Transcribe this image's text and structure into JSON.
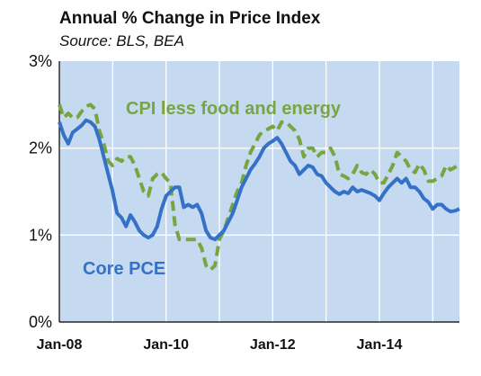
{
  "colors": {
    "plot_bg": "#c5d9f1",
    "core_pce": "#3572c7",
    "cpi": "#77a641",
    "grid": "#ffffff"
  },
  "chart_data": {
    "type": "line",
    "title": "Annual % Change in Price Index",
    "subtitle": "Source: BLS, BEA",
    "xlabel": "",
    "ylabel": "",
    "xlim": [
      "2008-01",
      "2015-07"
    ],
    "ylim": [
      0,
      3
    ],
    "y_ticks": [
      "0%",
      "1%",
      "2%",
      "3%"
    ],
    "x_ticks": [
      "Jan-08",
      "Jan-10",
      "Jan-12",
      "Jan-14"
    ],
    "grid": true,
    "series": [
      {
        "name": "Core PCE",
        "style": "solid",
        "points": [
          [
            "2008-01",
            2.3
          ],
          [
            "2008-02",
            2.15
          ],
          [
            "2008-03",
            2.05
          ],
          [
            "2008-04",
            2.18
          ],
          [
            "2008-05",
            2.22
          ],
          [
            "2008-06",
            2.26
          ],
          [
            "2008-07",
            2.32
          ],
          [
            "2008-08",
            2.3
          ],
          [
            "2008-09",
            2.25
          ],
          [
            "2008-10",
            2.1
          ],
          [
            "2008-11",
            1.9
          ],
          [
            "2008-12",
            1.7
          ],
          [
            "2009-01",
            1.5
          ],
          [
            "2009-02",
            1.25
          ],
          [
            "2009-03",
            1.2
          ],
          [
            "2009-04",
            1.1
          ],
          [
            "2009-05",
            1.23
          ],
          [
            "2009-06",
            1.15
          ],
          [
            "2009-07",
            1.05
          ],
          [
            "2009-08",
            1.0
          ],
          [
            "2009-09",
            0.97
          ],
          [
            "2009-10",
            1.0
          ],
          [
            "2009-11",
            1.1
          ],
          [
            "2009-12",
            1.3
          ],
          [
            "2010-01",
            1.45
          ],
          [
            "2010-02",
            1.5
          ],
          [
            "2010-03",
            1.55
          ],
          [
            "2010-04",
            1.55
          ],
          [
            "2010-05",
            1.32
          ],
          [
            "2010-06",
            1.35
          ],
          [
            "2010-07",
            1.32
          ],
          [
            "2010-08",
            1.35
          ],
          [
            "2010-09",
            1.25
          ],
          [
            "2010-10",
            1.05
          ],
          [
            "2010-11",
            0.97
          ],
          [
            "2010-12",
            0.95
          ],
          [
            "2011-01",
            1.0
          ],
          [
            "2011-02",
            1.05
          ],
          [
            "2011-03",
            1.15
          ],
          [
            "2011-04",
            1.25
          ],
          [
            "2011-05",
            1.4
          ],
          [
            "2011-06",
            1.55
          ],
          [
            "2011-07",
            1.65
          ],
          [
            "2011-08",
            1.75
          ],
          [
            "2011-09",
            1.82
          ],
          [
            "2011-10",
            1.9
          ],
          [
            "2011-11",
            2.0
          ],
          [
            "2011-12",
            2.05
          ],
          [
            "2012-01",
            2.08
          ],
          [
            "2012-02",
            2.12
          ],
          [
            "2012-03",
            2.05
          ],
          [
            "2012-04",
            1.95
          ],
          [
            "2012-05",
            1.85
          ],
          [
            "2012-06",
            1.8
          ],
          [
            "2012-07",
            1.7
          ],
          [
            "2012-08",
            1.75
          ],
          [
            "2012-09",
            1.8
          ],
          [
            "2012-10",
            1.78
          ],
          [
            "2012-11",
            1.7
          ],
          [
            "2012-12",
            1.68
          ],
          [
            "2013-01",
            1.6
          ],
          [
            "2013-02",
            1.55
          ],
          [
            "2013-03",
            1.5
          ],
          [
            "2013-04",
            1.47
          ],
          [
            "2013-05",
            1.5
          ],
          [
            "2013-06",
            1.48
          ],
          [
            "2013-07",
            1.55
          ],
          [
            "2013-08",
            1.5
          ],
          [
            "2013-09",
            1.52
          ],
          [
            "2013-10",
            1.5
          ],
          [
            "2013-11",
            1.48
          ],
          [
            "2013-12",
            1.45
          ],
          [
            "2014-01",
            1.4
          ],
          [
            "2014-02",
            1.48
          ],
          [
            "2014-03",
            1.55
          ],
          [
            "2014-04",
            1.6
          ],
          [
            "2014-05",
            1.65
          ],
          [
            "2014-06",
            1.6
          ],
          [
            "2014-07",
            1.65
          ],
          [
            "2014-08",
            1.55
          ],
          [
            "2014-09",
            1.55
          ],
          [
            "2014-10",
            1.5
          ],
          [
            "2014-11",
            1.42
          ],
          [
            "2014-12",
            1.38
          ],
          [
            "2015-01",
            1.3
          ],
          [
            "2015-02",
            1.35
          ],
          [
            "2015-03",
            1.35
          ],
          [
            "2015-04",
            1.3
          ],
          [
            "2015-05",
            1.27
          ],
          [
            "2015-06",
            1.28
          ],
          [
            "2015-07",
            1.3
          ]
        ]
      },
      {
        "name": "CPI less food and energy",
        "style": "dashed",
        "points": [
          [
            "2008-01",
            2.5
          ],
          [
            "2008-02",
            2.35
          ],
          [
            "2008-03",
            2.4
          ],
          [
            "2008-04",
            2.35
          ],
          [
            "2008-05",
            2.35
          ],
          [
            "2008-06",
            2.42
          ],
          [
            "2008-07",
            2.48
          ],
          [
            "2008-08",
            2.5
          ],
          [
            "2008-09",
            2.45
          ],
          [
            "2008-10",
            2.2
          ],
          [
            "2008-11",
            2.05
          ],
          [
            "2008-12",
            1.85
          ],
          [
            "2009-01",
            1.8
          ],
          [
            "2009-02",
            1.88
          ],
          [
            "2009-03",
            1.85
          ],
          [
            "2009-04",
            1.9
          ],
          [
            "2009-05",
            1.9
          ],
          [
            "2009-06",
            1.8
          ],
          [
            "2009-07",
            1.65
          ],
          [
            "2009-08",
            1.5
          ],
          [
            "2009-09",
            1.45
          ],
          [
            "2009-10",
            1.65
          ],
          [
            "2009-11",
            1.7
          ],
          [
            "2009-12",
            1.72
          ],
          [
            "2010-01",
            1.65
          ],
          [
            "2010-02",
            1.6
          ],
          [
            "2010-03",
            1.12
          ],
          [
            "2010-04",
            0.95
          ],
          [
            "2010-05",
            0.95
          ],
          [
            "2010-06",
            0.95
          ],
          [
            "2010-07",
            0.95
          ],
          [
            "2010-08",
            0.95
          ],
          [
            "2010-09",
            0.85
          ],
          [
            "2010-10",
            0.65
          ],
          [
            "2010-11",
            0.6
          ],
          [
            "2010-12",
            0.65
          ],
          [
            "2011-01",
            0.95
          ],
          [
            "2011-02",
            1.05
          ],
          [
            "2011-03",
            1.2
          ],
          [
            "2011-04",
            1.35
          ],
          [
            "2011-05",
            1.5
          ],
          [
            "2011-06",
            1.6
          ],
          [
            "2011-07",
            1.8
          ],
          [
            "2011-08",
            1.95
          ],
          [
            "2011-09",
            2.05
          ],
          [
            "2011-10",
            2.15
          ],
          [
            "2011-11",
            2.2
          ],
          [
            "2011-12",
            2.22
          ],
          [
            "2012-01",
            2.25
          ],
          [
            "2012-02",
            2.2
          ],
          [
            "2012-03",
            2.3
          ],
          [
            "2012-04",
            2.3
          ],
          [
            "2012-05",
            2.25
          ],
          [
            "2012-06",
            2.2
          ],
          [
            "2012-07",
            2.1
          ],
          [
            "2012-08",
            1.9
          ],
          [
            "2012-09",
            2.0
          ],
          [
            "2012-10",
            2.0
          ],
          [
            "2012-11",
            1.9
          ],
          [
            "2012-12",
            1.95
          ],
          [
            "2013-01",
            1.95
          ],
          [
            "2013-02",
            2.0
          ],
          [
            "2013-03",
            1.9
          ],
          [
            "2013-04",
            1.7
          ],
          [
            "2013-05",
            1.68
          ],
          [
            "2013-06",
            1.65
          ],
          [
            "2013-07",
            1.7
          ],
          [
            "2013-08",
            1.8
          ],
          [
            "2013-09",
            1.72
          ],
          [
            "2013-10",
            1.7
          ],
          [
            "2013-11",
            1.75
          ],
          [
            "2013-12",
            1.7
          ],
          [
            "2014-01",
            1.6
          ],
          [
            "2014-02",
            1.6
          ],
          [
            "2014-03",
            1.7
          ],
          [
            "2014-04",
            1.8
          ],
          [
            "2014-05",
            1.95
          ],
          [
            "2014-06",
            1.9
          ],
          [
            "2014-07",
            1.85
          ],
          [
            "2014-08",
            1.75
          ],
          [
            "2014-09",
            1.72
          ],
          [
            "2014-10",
            1.82
          ],
          [
            "2014-11",
            1.75
          ],
          [
            "2014-12",
            1.62
          ],
          [
            "2015-01",
            1.62
          ],
          [
            "2015-02",
            1.65
          ],
          [
            "2015-03",
            1.68
          ],
          [
            "2015-04",
            1.8
          ],
          [
            "2015-05",
            1.75
          ],
          [
            "2015-06",
            1.78
          ],
          [
            "2015-07",
            1.8
          ]
        ]
      }
    ]
  }
}
